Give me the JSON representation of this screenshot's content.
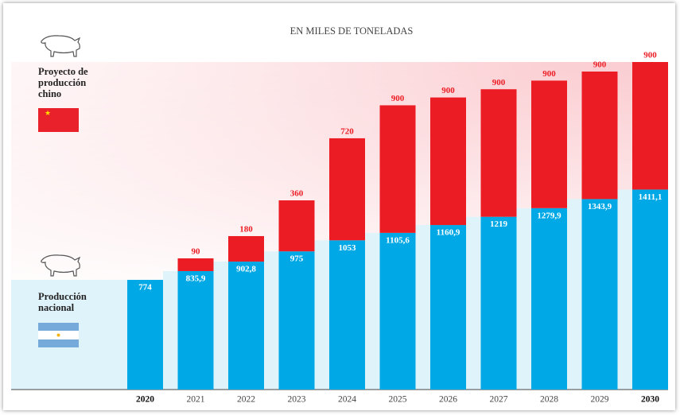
{
  "chart_data": {
    "type": "stacked-bar",
    "title": "EN MILES DE TONELADAS",
    "categories": [
      "2020",
      "2021",
      "2022",
      "2023",
      "2024",
      "2025",
      "2026",
      "2027",
      "2028",
      "2029",
      "2030"
    ],
    "series": [
      {
        "name": "Producción nacional",
        "color": "#00a9e6",
        "values": [
          774,
          835.9,
          902.8,
          975,
          1053,
          1105.6,
          1160.9,
          1219,
          1279.9,
          1343.9,
          1411.1
        ],
        "value_labels": [
          "774",
          "835,9",
          "902,8",
          "975",
          "1053",
          "1105,6",
          "1160,9",
          "1219",
          "1279,9",
          "1343,9",
          "1411,1"
        ]
      },
      {
        "name": "Proyecto de producción chino",
        "color": "#ec1c24",
        "values": [
          null,
          90,
          180,
          360,
          720,
          900,
          900,
          900,
          900,
          900,
          900
        ]
      }
    ]
  }
}
